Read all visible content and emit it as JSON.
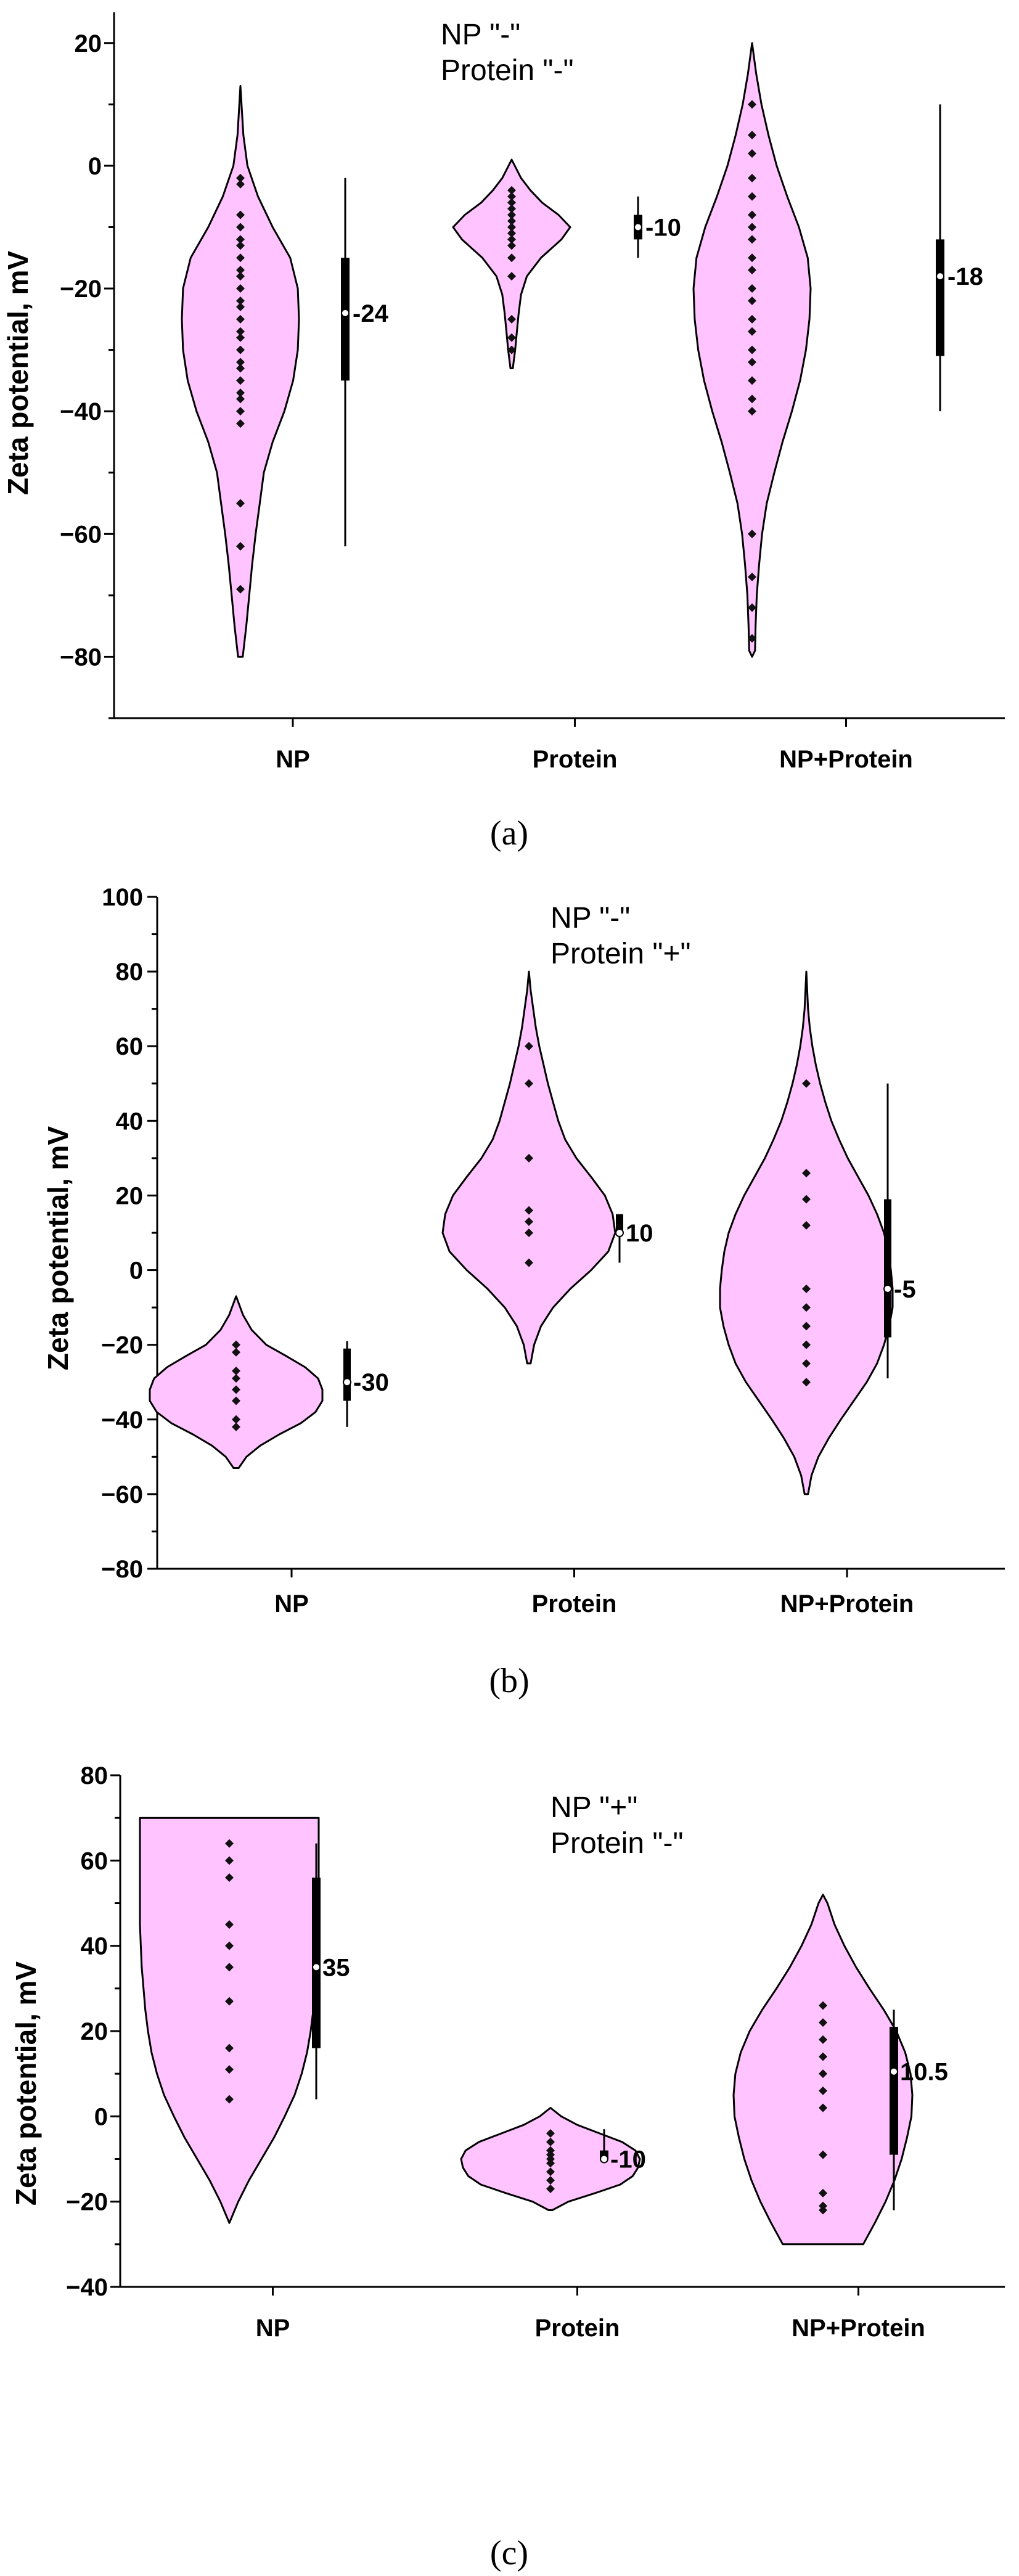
{
  "chart_data": [
    {
      "type": "violin",
      "caption": "(a)",
      "title": "",
      "annotation": [
        "NP \"-\"",
        "Protein \"-\""
      ],
      "xlabel": "",
      "ylabel": "Zeta potential, mV",
      "ylim": [
        -90,
        25
      ],
      "yticks": [
        20,
        0,
        -20,
        -40,
        -60,
        -80
      ],
      "ytick_labels": [
        "20",
        "0",
        "−20",
        "−40",
        "−60",
        "−80"
      ],
      "categories": [
        "NP",
        "Protein",
        "NP+Protein"
      ],
      "fill_color": "#ffc4ff",
      "series": [
        {
          "name": "NP",
          "violin_range": [
            -80,
            13
          ],
          "density": [
            [
              -80,
              0.04
            ],
            [
              -75,
              0.1
            ],
            [
              -70,
              0.15
            ],
            [
              -65,
              0.2
            ],
            [
              -60,
              0.26
            ],
            [
              -55,
              0.33
            ],
            [
              -50,
              0.4
            ],
            [
              -45,
              0.55
            ],
            [
              -40,
              0.75
            ],
            [
              -35,
              0.9
            ],
            [
              -30,
              0.98
            ],
            [
              -25,
              1.0
            ],
            [
              -20,
              0.98
            ],
            [
              -15,
              0.85
            ],
            [
              -10,
              0.55
            ],
            [
              -5,
              0.3
            ],
            [
              0,
              0.12
            ],
            [
              5,
              0.05
            ],
            [
              13,
              0.0
            ]
          ],
          "points": [
            -2,
            -3,
            -8,
            -10,
            -12,
            -13,
            -15,
            -17,
            -18,
            -20,
            -22,
            -23,
            -25,
            -27,
            -28,
            -30,
            -32,
            -33,
            -35,
            -37,
            -38,
            -40,
            -42,
            -55,
            -62,
            -69
          ],
          "box": {
            "whisker_low": -62,
            "q1": -35,
            "median": -24,
            "q3": -15,
            "whisker_high": -2
          },
          "median_label": "-24"
        },
        {
          "name": "Protein",
          "violin_range": [
            -33,
            1
          ],
          "density": [
            [
              -33,
              0.02
            ],
            [
              -30,
              0.06
            ],
            [
              -27,
              0.09
            ],
            [
              -24,
              0.12
            ],
            [
              -21,
              0.16
            ],
            [
              -18,
              0.26
            ],
            [
              -15,
              0.5
            ],
            [
              -12,
              0.85
            ],
            [
              -10,
              1.0
            ],
            [
              -8,
              0.8
            ],
            [
              -6,
              0.52
            ],
            [
              -4,
              0.32
            ],
            [
              -2,
              0.16
            ],
            [
              1,
              0.0
            ]
          ],
          "points": [
            -4,
            -5,
            -6,
            -7,
            -8,
            -9,
            -10,
            -11,
            -12,
            -13,
            -15,
            -18,
            -25,
            -28,
            -30
          ],
          "box": {
            "whisker_low": -15,
            "q1": -12,
            "median": -10,
            "q3": -8,
            "whisker_high": -5
          },
          "median_label": "-10"
        },
        {
          "name": "NP+Protein",
          "violin_range": [
            -80,
            20
          ],
          "density": [
            [
              -80,
              0.0
            ],
            [
              -79,
              0.05
            ],
            [
              -75,
              0.06
            ],
            [
              -70,
              0.08
            ],
            [
              -65,
              0.12
            ],
            [
              -60,
              0.17
            ],
            [
              -55,
              0.25
            ],
            [
              -50,
              0.38
            ],
            [
              -45,
              0.52
            ],
            [
              -40,
              0.68
            ],
            [
              -35,
              0.82
            ],
            [
              -30,
              0.92
            ],
            [
              -25,
              0.98
            ],
            [
              -20,
              1.0
            ],
            [
              -15,
              0.95
            ],
            [
              -10,
              0.8
            ],
            [
              -5,
              0.6
            ],
            [
              0,
              0.42
            ],
            [
              5,
              0.28
            ],
            [
              10,
              0.16
            ],
            [
              15,
              0.07
            ],
            [
              20,
              0.0
            ]
          ],
          "points": [
            10,
            5,
            2,
            -2,
            -5,
            -8,
            -10,
            -12,
            -15,
            -17,
            -20,
            -22,
            -25,
            -27,
            -30,
            -32,
            -35,
            -38,
            -40,
            -60,
            -67,
            -72,
            -77
          ],
          "box": {
            "whisker_low": -40,
            "q1": -31,
            "median": -18,
            "q3": -12,
            "whisker_high": 10
          },
          "median_label": "-18"
        }
      ]
    },
    {
      "type": "violin",
      "caption": "(b)",
      "title": "",
      "annotation": [
        "NP \"-\"",
        "Protein \"+\""
      ],
      "xlabel": "",
      "ylabel": "Zeta potential, mV",
      "ylim": [
        -80,
        100
      ],
      "yticks": [
        100,
        80,
        60,
        40,
        20,
        0,
        -20,
        -40,
        -60,
        -80
      ],
      "ytick_labels": [
        "100",
        "80",
        "60",
        "40",
        "20",
        "0",
        "−20",
        "−40",
        "−60",
        "−80"
      ],
      "categories": [
        "NP",
        "Protein",
        "NP+Protein"
      ],
      "fill_color": "#ffc4ff",
      "series": [
        {
          "name": "NP",
          "violin_range": [
            -53,
            -7
          ],
          "density": [
            [
              -53,
              0.03
            ],
            [
              -50,
              0.12
            ],
            [
              -47,
              0.28
            ],
            [
              -44,
              0.5
            ],
            [
              -41,
              0.75
            ],
            [
              -38,
              0.92
            ],
            [
              -35,
              1.0
            ],
            [
              -32,
              1.0
            ],
            [
              -29,
              0.95
            ],
            [
              -26,
              0.8
            ],
            [
              -23,
              0.58
            ],
            [
              -20,
              0.35
            ],
            [
              -16,
              0.18
            ],
            [
              -12,
              0.08
            ],
            [
              -7,
              0.0
            ]
          ],
          "points": [
            -20,
            -22,
            -27,
            -29,
            -32,
            -35,
            -40,
            -42
          ],
          "box": {
            "whisker_low": -42,
            "q1": -35,
            "median": -30,
            "q3": -21,
            "whisker_high": -19
          },
          "median_label": "-30"
        },
        {
          "name": "Protein",
          "violin_range": [
            -25,
            80
          ],
          "density": [
            [
              -25,
              0.02
            ],
            [
              -20,
              0.06
            ],
            [
              -15,
              0.14
            ],
            [
              -10,
              0.28
            ],
            [
              -5,
              0.48
            ],
            [
              0,
              0.72
            ],
            [
              5,
              0.92
            ],
            [
              10,
              1.0
            ],
            [
              15,
              0.97
            ],
            [
              20,
              0.88
            ],
            [
              25,
              0.72
            ],
            [
              30,
              0.55
            ],
            [
              35,
              0.42
            ],
            [
              40,
              0.34
            ],
            [
              45,
              0.28
            ],
            [
              50,
              0.22
            ],
            [
              55,
              0.17
            ],
            [
              60,
              0.12
            ],
            [
              65,
              0.08
            ],
            [
              70,
              0.05
            ],
            [
              75,
              0.02
            ],
            [
              80,
              0.0
            ]
          ],
          "points": [
            60,
            50,
            30,
            16,
            13,
            10,
            2
          ],
          "box": {
            "whisker_low": 2,
            "q1": 10,
            "median": 10,
            "q3": 15,
            "whisker_high": 15
          },
          "median_label": "10"
        },
        {
          "name": "NP+Protein",
          "violin_range": [
            -60,
            80
          ],
          "density": [
            [
              -60,
              0.02
            ],
            [
              -55,
              0.06
            ],
            [
              -50,
              0.14
            ],
            [
              -45,
              0.26
            ],
            [
              -40,
              0.4
            ],
            [
              -35,
              0.55
            ],
            [
              -30,
              0.7
            ],
            [
              -25,
              0.82
            ],
            [
              -20,
              0.9
            ],
            [
              -15,
              0.96
            ],
            [
              -10,
              1.0
            ],
            [
              -5,
              1.0
            ],
            [
              0,
              0.98
            ],
            [
              5,
              0.95
            ],
            [
              10,
              0.9
            ],
            [
              15,
              0.82
            ],
            [
              20,
              0.72
            ],
            [
              25,
              0.6
            ],
            [
              30,
              0.48
            ],
            [
              35,
              0.38
            ],
            [
              40,
              0.29
            ],
            [
              45,
              0.22
            ],
            [
              50,
              0.16
            ],
            [
              55,
              0.11
            ],
            [
              60,
              0.07
            ],
            [
              65,
              0.04
            ],
            [
              70,
              0.02
            ],
            [
              80,
              0.0
            ]
          ],
          "points": [
            50,
            26,
            19,
            12,
            -5,
            -10,
            -15,
            -20,
            -25,
            -30
          ],
          "box": {
            "whisker_low": -29,
            "q1": -18,
            "median": -5,
            "q3": 19,
            "whisker_high": 50
          },
          "median_label": "-5"
        }
      ]
    },
    {
      "type": "violin",
      "caption": "(c)",
      "title": "",
      "annotation": [
        "NP \"+\"",
        "Protein \"-\""
      ],
      "xlabel": "",
      "ylabel": "Zeta potential, mV",
      "ylim": [
        -40,
        80
      ],
      "yticks": [
        80,
        60,
        40,
        20,
        0,
        -20,
        -40
      ],
      "ytick_labels": [
        "80",
        "60",
        "40",
        "20",
        "0",
        "−20",
        "−40"
      ],
      "categories": [
        "NP",
        "Protein",
        "NP+Protein"
      ],
      "fill_color": "#ffc4ff",
      "series": [
        {
          "name": "NP",
          "violin_range": [
            -25,
            70
          ],
          "flat_top": true,
          "density": [
            [
              -25,
              0.0
            ],
            [
              -20,
              0.1
            ],
            [
              -15,
              0.22
            ],
            [
              -10,
              0.36
            ],
            [
              -5,
              0.5
            ],
            [
              0,
              0.62
            ],
            [
              5,
              0.73
            ],
            [
              10,
              0.81
            ],
            [
              15,
              0.87
            ],
            [
              20,
              0.91
            ],
            [
              25,
              0.94
            ],
            [
              30,
              0.96
            ],
            [
              35,
              0.98
            ],
            [
              40,
              0.99
            ],
            [
              45,
              1.0
            ],
            [
              50,
              1.0
            ],
            [
              55,
              1.0
            ],
            [
              60,
              1.0
            ],
            [
              65,
              1.0
            ],
            [
              70,
              1.0
            ]
          ],
          "points": [
            64,
            60,
            56,
            45,
            40,
            35,
            27,
            16,
            11,
            4
          ],
          "box": {
            "whisker_low": 4,
            "q1": 16,
            "median": 35,
            "q3": 56,
            "whisker_high": 64
          },
          "median_label": "35"
        },
        {
          "name": "Protein",
          "violin_range": [
            -22,
            2
          ],
          "density": [
            [
              -22,
              0.02
            ],
            [
              -20,
              0.2
            ],
            [
              -18,
              0.5
            ],
            [
              -16,
              0.78
            ],
            [
              -14,
              0.92
            ],
            [
              -12,
              0.98
            ],
            [
              -10,
              1.0
            ],
            [
              -8,
              0.95
            ],
            [
              -6,
              0.8
            ],
            [
              -4,
              0.55
            ],
            [
              -2,
              0.3
            ],
            [
              0,
              0.12
            ],
            [
              2,
              0.0
            ]
          ],
          "points": [
            -4,
            -6,
            -8,
            -9,
            -10,
            -11,
            -13,
            -15,
            -17
          ],
          "box": {
            "whisker_low": -10,
            "q1": -10,
            "median": -10,
            "q3": -8,
            "whisker_high": -3
          },
          "median_label": "-10"
        },
        {
          "name": "NP+Protein",
          "violin_range": [
            -30,
            52
          ],
          "flat_bottom": true,
          "density": [
            [
              -30,
              0.45
            ],
            [
              -25,
              0.58
            ],
            [
              -20,
              0.7
            ],
            [
              -15,
              0.8
            ],
            [
              -10,
              0.88
            ],
            [
              -5,
              0.94
            ],
            [
              0,
              0.99
            ],
            [
              5,
              1.0
            ],
            [
              10,
              0.98
            ],
            [
              15,
              0.92
            ],
            [
              20,
              0.82
            ],
            [
              25,
              0.68
            ],
            [
              30,
              0.52
            ],
            [
              35,
              0.37
            ],
            [
              40,
              0.24
            ],
            [
              45,
              0.13
            ],
            [
              50,
              0.05
            ],
            [
              52,
              0.0
            ]
          ],
          "points": [
            26,
            22,
            18,
            14,
            10,
            6,
            2,
            -9,
            -18,
            -21,
            -22
          ],
          "box": {
            "whisker_low": -22,
            "q1": -9,
            "median": 10.5,
            "q3": 21,
            "whisker_high": 25
          },
          "median_label": "10.5"
        }
      ]
    }
  ]
}
